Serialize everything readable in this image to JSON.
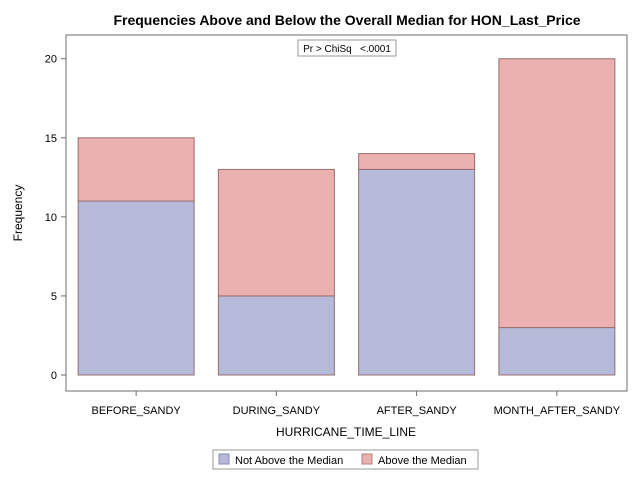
{
  "chart_data": {
    "type": "bar",
    "stacked": true,
    "title": "Frequencies Above and Below the Overall Median for HON_Last_Price",
    "xlabel": "HURRICANE_TIME_LINE",
    "ylabel": "Frequency",
    "categories": [
      "BEFORE_SANDY",
      "DURING_SANDY",
      "AFTER_SANDY",
      "MONTH_AFTER_SANDY"
    ],
    "series": [
      {
        "name": "Not Above the Median",
        "values": [
          11,
          5,
          13,
          3
        ],
        "color": "#B4BAD8"
      },
      {
        "name": "Above the Median",
        "values": [
          4,
          8,
          1,
          17
        ],
        "color": "#EBB0B0"
      }
    ],
    "ylim": [
      0,
      21.5
    ],
    "yticks": [
      0,
      5,
      10,
      15,
      20
    ],
    "grid": false,
    "legend_position": "bottom",
    "inset_text": "Pr > ChiSq   <.0001",
    "bar_edge_color": "#9A6E6E"
  }
}
